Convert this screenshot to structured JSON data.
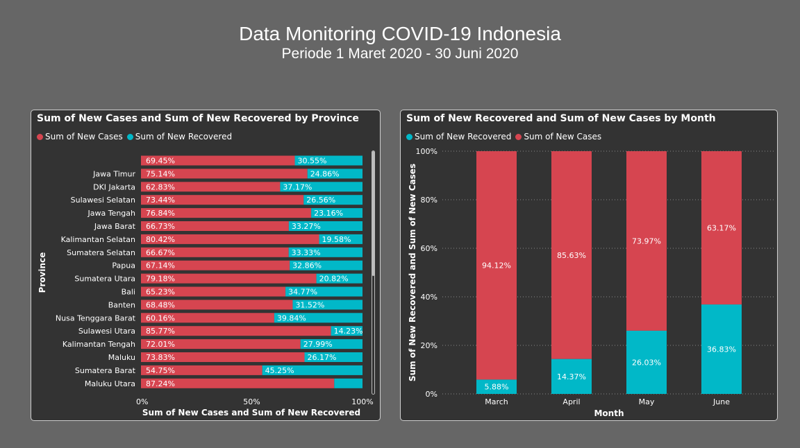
{
  "page": {
    "title": "Data Monitoring COVID-19 Indonesia",
    "subtitle": "Periode 1 Maret 2020 - 30 Juni 2020"
  },
  "colors": {
    "new_cases": "#d64550",
    "new_recovered": "#01b8c8",
    "panel_bg": "#333333",
    "page_bg": "#666666"
  },
  "chart_data": [
    {
      "type": "bar",
      "orientation": "horizontal",
      "stacking": "100%",
      "title": "Sum of New Cases and Sum of New Recovered by Province",
      "xlabel": "Sum of New Cases and Sum of New Recovered",
      "ylabel": "Province",
      "xticks": [
        "0%",
        "50%",
        "100%"
      ],
      "legend_position": "top-left",
      "grid": false,
      "legend": [
        "Sum of New Cases",
        "Sum of New Recovered"
      ],
      "categories": [
        "",
        "Jawa Timur",
        "DKI Jakarta",
        "Sulawesi Selatan",
        "Jawa Tengah",
        "Jawa Barat",
        "Kalimantan Selatan",
        "Sumatera Selatan",
        "Papua",
        "Sumatera Utara",
        "Bali",
        "Banten",
        "Nusa Tenggara Barat",
        "Sulawesi Utara",
        "Kalimantan Tengah",
        "Maluku",
        "Sumatera Barat",
        "Maluku Utara"
      ],
      "series": [
        {
          "name": "Sum of New Cases",
          "values": [
            69.45,
            75.14,
            62.83,
            73.44,
            76.84,
            66.73,
            80.42,
            66.67,
            67.14,
            79.18,
            65.23,
            68.48,
            60.16,
            85.77,
            72.01,
            73.83,
            54.75,
            87.24
          ],
          "labels": [
            "69.45%",
            "75.14%",
            "62.83%",
            "73.44%",
            "76.84%",
            "66.73%",
            "80.42%",
            "66.67%",
            "67.14%",
            "79.18%",
            "65.23%",
            "68.48%",
            "60.16%",
            "85.77%",
            "72.01%",
            "73.83%",
            "54.75%",
            "87.24%"
          ]
        },
        {
          "name": "Sum of New Recovered",
          "values": [
            30.55,
            24.86,
            37.17,
            26.56,
            23.16,
            33.27,
            19.58,
            33.33,
            32.86,
            20.82,
            34.77,
            31.52,
            39.84,
            14.23,
            27.99,
            26.17,
            45.25,
            12.76
          ],
          "labels": [
            "30.55%",
            "24.86%",
            "37.17%",
            "26.56%",
            "23.16%",
            "33.27%",
            "19.58%",
            "33.33%",
            "32.86%",
            "20.82%",
            "34.77%",
            "31.52%",
            "39.84%",
            "14.23%",
            "27.99%",
            "26.17%",
            "45.25%",
            ""
          ]
        }
      ]
    },
    {
      "type": "bar",
      "orientation": "vertical",
      "stacking": "100%",
      "title": "Sum of New Recovered and Sum of New Cases by Month",
      "xlabel": "Month",
      "ylabel": "Sum of New Recovered and Sum of New Cases",
      "yticks": [
        "0%",
        "20%",
        "40%",
        "60%",
        "80%",
        "100%"
      ],
      "ylim": [
        0,
        100
      ],
      "legend_position": "top-left",
      "grid": true,
      "legend": [
        "Sum of New Recovered",
        "Sum of New Cases"
      ],
      "categories": [
        "March",
        "April",
        "May",
        "June"
      ],
      "series": [
        {
          "name": "Sum of New Recovered",
          "values": [
            5.88,
            14.37,
            26.03,
            36.83
          ],
          "labels": [
            "5.88%",
            "14.37%",
            "26.03%",
            "36.83%"
          ]
        },
        {
          "name": "Sum of New Cases",
          "values": [
            94.12,
            85.63,
            73.97,
            63.17
          ],
          "labels": [
            "94.12%",
            "85.63%",
            "73.97%",
            "63.17%"
          ]
        }
      ]
    }
  ]
}
